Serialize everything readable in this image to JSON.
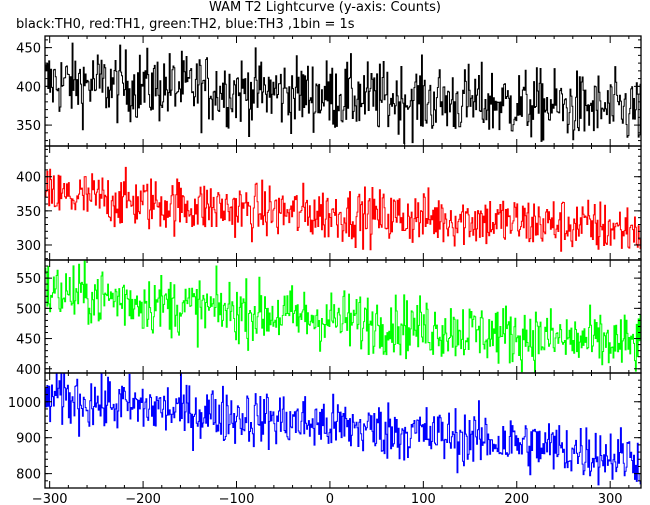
{
  "chart_data": {
    "type": "line",
    "title": "WAM T2 Lightcurve (y-axis: Counts)",
    "subtitle": "black:TH0, red:TH1, green:TH2, blue:TH3 ,1bin = 1s",
    "xlabel": "",
    "x_range": [
      -305,
      333
    ],
    "x_ticks": [
      -300,
      -200,
      -100,
      0,
      100,
      200,
      300
    ],
    "bin_seconds": 1,
    "panels": [
      {
        "name": "TH0",
        "color": "#000000",
        "ylim": [
          323,
          465
        ],
        "y_ticks": [
          350,
          400,
          450
        ],
        "x": [
          -300,
          -250,
          -200,
          -150,
          -100,
          -50,
          0,
          50,
          100,
          150,
          200,
          250,
          300,
          330
        ],
        "y": [
          405,
          403,
          400,
          398,
          395,
          392,
          388,
          385,
          382,
          380,
          377,
          373,
          370,
          368
        ],
        "noise": 23
      },
      {
        "name": "TH1",
        "color": "#ff0000",
        "ylim": [
          278,
          445
        ],
        "y_ticks": [
          300,
          350,
          400
        ],
        "x": [
          -300,
          -250,
          -200,
          -150,
          -100,
          -50,
          0,
          50,
          100,
          150,
          200,
          250,
          300,
          330
        ],
        "y": [
          372,
          368,
          362,
          357,
          352,
          348,
          345,
          342,
          340,
          337,
          333,
          330,
          325,
          322
        ],
        "noise": 20
      },
      {
        "name": "TH2",
        "color": "#00ff00",
        "ylim": [
          393,
          580
        ],
        "y_ticks": [
          400,
          450,
          500,
          550
        ],
        "x": [
          -300,
          -250,
          -200,
          -150,
          -100,
          -50,
          0,
          50,
          100,
          150,
          200,
          250,
          300,
          330
        ],
        "y": [
          528,
          520,
          510,
          502,
          495,
          488,
          482,
          476,
          468,
          462,
          455,
          448,
          442,
          440
        ],
        "noise": 25
      },
      {
        "name": "TH3",
        "color": "#0000ff",
        "ylim": [
          760,
          1080
        ],
        "y_ticks": [
          800,
          900,
          1000
        ],
        "x": [
          -300,
          -250,
          -200,
          -150,
          -100,
          -50,
          0,
          50,
          100,
          150,
          200,
          250,
          300,
          330
        ],
        "y": [
          1012,
          998,
          985,
          972,
          960,
          948,
          935,
          922,
          910,
          898,
          885,
          868,
          850,
          845
        ],
        "noise": 40
      }
    ]
  }
}
